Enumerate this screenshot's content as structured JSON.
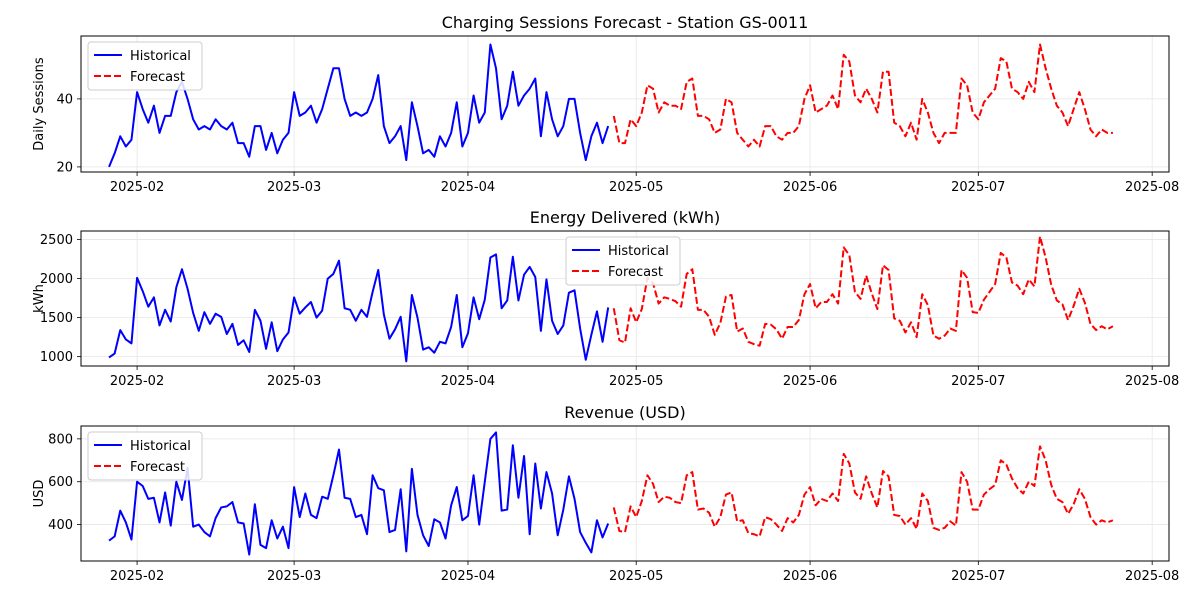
{
  "figure": {
    "x_ticks": [
      "2025-02",
      "2025-03",
      "2025-04",
      "2025-05",
      "2025-06",
      "2025-07",
      "2025-08"
    ],
    "x_tick_dates": [
      "2025-02-01",
      "2025-03-01",
      "2025-04-01",
      "2025-05-01",
      "2025-06-01",
      "2025-07-01",
      "2025-08-01"
    ],
    "x_range": [
      "2025-01-22",
      "2025-08-04"
    ],
    "historical_start": "2025-01-27",
    "forecast_start": "2025-04-27",
    "colors": {
      "historical": "#0000ff",
      "forecast": "#ff0000",
      "grid": "#e6e6e6",
      "axis": "#000000"
    },
    "grid": true
  },
  "chart_data": [
    {
      "type": "line",
      "title": "Charging Sessions Forecast - Station GS-0011",
      "ylabel": "Daily Sessions",
      "ylim": [
        18.5,
        58.5
      ],
      "yticks": [
        20,
        40
      ],
      "legend": {
        "position": "top-left",
        "entries": [
          "Historical",
          "Forecast"
        ]
      },
      "series": [
        {
          "name": "Historical",
          "style": "solid",
          "values": [
            20,
            24,
            29,
            26,
            28,
            42,
            37,
            33,
            38,
            30,
            35,
            35,
            42,
            45,
            40,
            34,
            31,
            32,
            31,
            34,
            32,
            31,
            33,
            27,
            27,
            23,
            32,
            32,
            25,
            30,
            24,
            28,
            30,
            42,
            35,
            36,
            38,
            33,
            37,
            43,
            49,
            49,
            40,
            35,
            36,
            35,
            36,
            40,
            47,
            32,
            27,
            29,
            32,
            22,
            39,
            32,
            24,
            25,
            23,
            29,
            26,
            30,
            39,
            26,
            30,
            41,
            33,
            36,
            56,
            49,
            34,
            38,
            48,
            38,
            41,
            43,
            46,
            29,
            42,
            34,
            29,
            32,
            40,
            40,
            30,
            22,
            29,
            33,
            27,
            32
          ]
        },
        {
          "name": "Forecast",
          "style": "dashed",
          "values": [
            35,
            27,
            27,
            34,
            32,
            36,
            44,
            43,
            36,
            39,
            38,
            38,
            37,
            45,
            46,
            35,
            35,
            34,
            30,
            31,
            40,
            39,
            30,
            28,
            26,
            28,
            26,
            32,
            32,
            29,
            28,
            30,
            30,
            32,
            40,
            44,
            36,
            37,
            38,
            41,
            37,
            53,
            51,
            41,
            39,
            43,
            40,
            36,
            48,
            48,
            33,
            32,
            29,
            33,
            28,
            40,
            36,
            30,
            27,
            30,
            30,
            30,
            46,
            44,
            36,
            34,
            39,
            41,
            43,
            52,
            51,
            43,
            42,
            40,
            45,
            42,
            56,
            49,
            43,
            38,
            36,
            32,
            37,
            42,
            37,
            31,
            29,
            31,
            30,
            30
          ]
        }
      ]
    },
    {
      "type": "line",
      "title": "Energy Delivered (kWh)",
      "ylabel": "kWh",
      "ylim": [
        880,
        2610
      ],
      "yticks": [
        1000,
        1500,
        2000,
        2500
      ],
      "legend": {
        "position": "top-center",
        "entries": [
          "Historical",
          "Forecast"
        ]
      },
      "series": [
        {
          "name": "Historical",
          "style": "solid",
          "values": [
            990,
            1040,
            1340,
            1220,
            1170,
            2010,
            1840,
            1640,
            1760,
            1400,
            1600,
            1450,
            1890,
            2120,
            1870,
            1560,
            1330,
            1570,
            1420,
            1550,
            1510,
            1290,
            1420,
            1150,
            1210,
            1060,
            1600,
            1460,
            1100,
            1440,
            1070,
            1220,
            1310,
            1760,
            1550,
            1630,
            1700,
            1500,
            1590,
            2000,
            2060,
            2230,
            1620,
            1600,
            1460,
            1600,
            1510,
            1830,
            2110,
            1540,
            1230,
            1350,
            1510,
            940,
            1790,
            1500,
            1090,
            1120,
            1050,
            1190,
            1170,
            1380,
            1790,
            1120,
            1300,
            1760,
            1480,
            1730,
            2270,
            2310,
            1620,
            1720,
            2280,
            1720,
            2050,
            2150,
            2020,
            1330,
            1990,
            1460,
            1290,
            1400,
            1820,
            1850,
            1360,
            960,
            1280,
            1580,
            1190,
            1630
          ]
        },
        {
          "name": "Forecast",
          "style": "dashed",
          "values": [
            1620,
            1210,
            1180,
            1620,
            1440,
            1610,
            2010,
            1940,
            1680,
            1760,
            1740,
            1710,
            1640,
            2060,
            2120,
            1600,
            1600,
            1510,
            1280,
            1430,
            1770,
            1790,
            1320,
            1360,
            1190,
            1160,
            1140,
            1420,
            1410,
            1350,
            1230,
            1380,
            1380,
            1470,
            1800,
            1930,
            1620,
            1700,
            1700,
            1800,
            1680,
            2400,
            2300,
            1830,
            1740,
            2040,
            1810,
            1610,
            2170,
            2110,
            1490,
            1460,
            1310,
            1440,
            1250,
            1800,
            1660,
            1270,
            1230,
            1270,
            1360,
            1330,
            2110,
            2010,
            1570,
            1560,
            1730,
            1830,
            1930,
            2330,
            2270,
            1950,
            1910,
            1800,
            1990,
            1900,
            2540,
            2270,
            1920,
            1720,
            1670,
            1470,
            1650,
            1870,
            1690,
            1420,
            1340,
            1390,
            1350,
            1390
          ]
        }
      ]
    },
    {
      "type": "line",
      "title": "Revenue (USD)",
      "ylabel": "USD",
      "ylim": [
        230,
        860
      ],
      "yticks": [
        400,
        600,
        800
      ],
      "legend": {
        "position": "top-left",
        "entries": [
          "Historical",
          "Forecast"
        ]
      },
      "series": [
        {
          "name": "Historical",
          "style": "solid",
          "values": [
            325,
            345,
            465,
            410,
            330,
            600,
            580,
            520,
            525,
            410,
            550,
            395,
            600,
            515,
            665,
            390,
            400,
            365,
            345,
            430,
            480,
            485,
            505,
            410,
            405,
            260,
            495,
            305,
            290,
            420,
            335,
            390,
            290,
            575,
            435,
            545,
            445,
            430,
            530,
            520,
            630,
            750,
            525,
            520,
            435,
            445,
            355,
            630,
            570,
            560,
            365,
            375,
            565,
            275,
            660,
            445,
            350,
            300,
            425,
            410,
            335,
            490,
            575,
            420,
            440,
            630,
            400,
            600,
            800,
            830,
            465,
            470,
            770,
            525,
            720,
            355,
            685,
            475,
            645,
            545,
            350,
            470,
            625,
            520,
            365,
            315,
            270,
            420,
            340,
            405
          ]
        },
        {
          "name": "Forecast",
          "style": "dashed",
          "values": [
            480,
            370,
            365,
            485,
            435,
            510,
            630,
            590,
            505,
            530,
            525,
            505,
            500,
            630,
            645,
            470,
            475,
            455,
            390,
            435,
            540,
            550,
            415,
            420,
            360,
            355,
            345,
            435,
            425,
            400,
            370,
            430,
            410,
            445,
            540,
            575,
            490,
            520,
            510,
            545,
            510,
            730,
            685,
            550,
            520,
            625,
            545,
            480,
            650,
            625,
            445,
            440,
            400,
            430,
            380,
            545,
            510,
            385,
            375,
            385,
            415,
            395,
            645,
            600,
            470,
            470,
            540,
            565,
            585,
            700,
            680,
            615,
            570,
            545,
            600,
            580,
            765,
            700,
            585,
            520,
            505,
            450,
            495,
            565,
            520,
            435,
            400,
            420,
            410,
            420
          ]
        }
      ]
    }
  ]
}
